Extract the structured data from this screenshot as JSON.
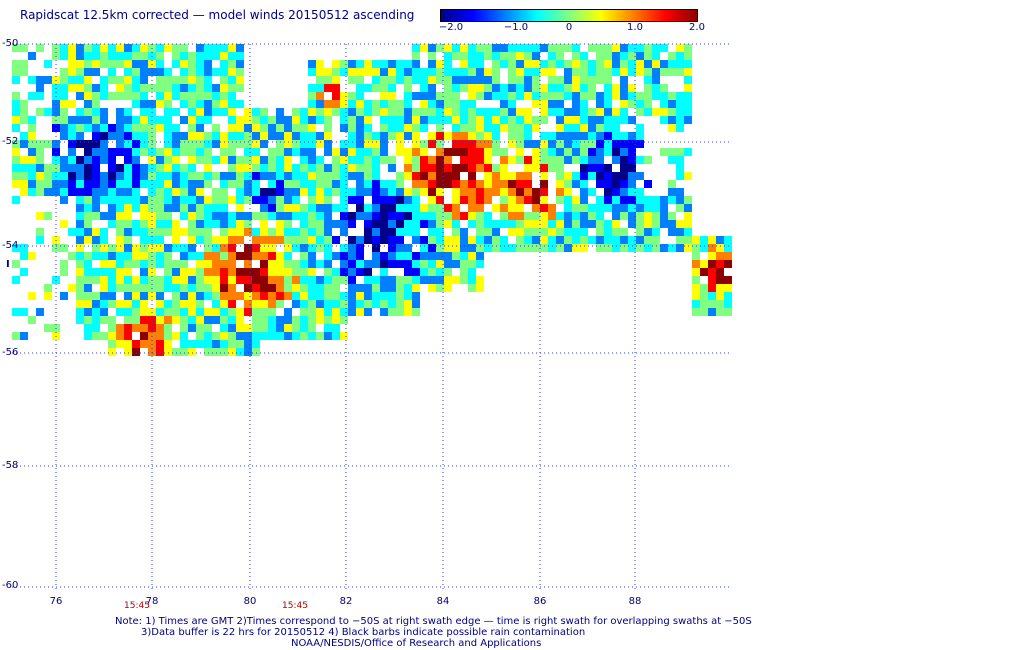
{
  "title": "Rapidscat 12.5km corrected — model winds 20150512 ascending",
  "colorbar": {
    "ticks": [
      "−2.0",
      "−1.0",
      "0",
      "1.0",
      "2.0"
    ],
    "range": [
      -2.0,
      2.0
    ],
    "colors": [
      "#00008b",
      "#0000ff",
      "#0080ff",
      "#00ffff",
      "#80ff80",
      "#ffff00",
      "#ff8000",
      "#ff0000",
      "#8b0000"
    ]
  },
  "map": {
    "lat_labels": [
      "-50",
      "-52",
      "-54",
      "-56",
      "-58",
      "-60"
    ],
    "lon_labels": [
      "76",
      "78",
      "80",
      "82",
      "84",
      "86",
      "88"
    ],
    "lat_range": [
      -60,
      -50
    ],
    "lon_range": [
      75.5,
      90
    ],
    "grid": "dotted",
    "side_mark": "I",
    "swath_times": [
      {
        "label": "15:45",
        "lon": 77.6
      },
      {
        "label": "15:45",
        "lon": 80.8
      }
    ],
    "field_description": "wind speed difference (corrected minus model)"
  },
  "footer": {
    "line1": "Note: 1) Times are GMT 2)Times correspond to −50S at right swath edge — time is right swath for overlapping swaths at −50S",
    "line2": "3)Data buffer is 22 hrs for 20150512 4) Black barbs indicate possible rain contamination",
    "line3": "NOAA/NESDIS/Office of Research and Applications"
  }
}
